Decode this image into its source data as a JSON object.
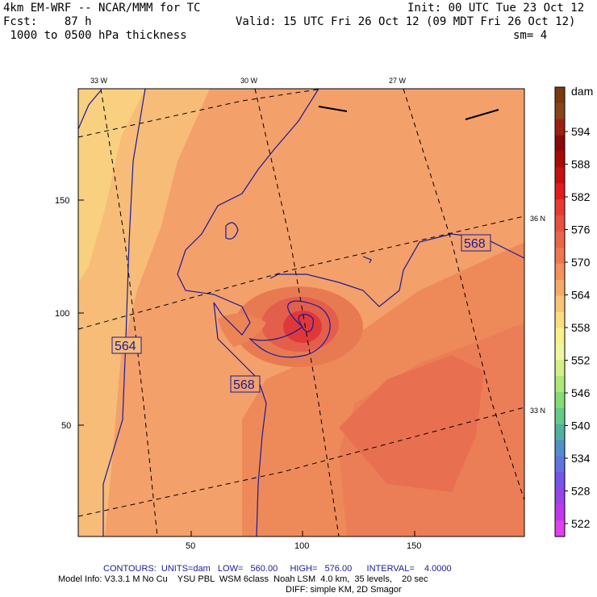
{
  "header": {
    "model": "4km EM-WRF -- NCAR/MMM for TC",
    "init": "Init: 00 UTC Tue 23 Oct 12",
    "fcst": "Fcst:    87 h",
    "valid": "Valid: 15 UTC Fri 26 Oct 12 (09 MDT Fri 26 Oct 12)",
    "field": " 1000 to 0500 hPa thickness",
    "smoothing": "sm= 4"
  },
  "map": {
    "lon_labels": [
      "33 W",
      "30 W",
      "27 W"
    ],
    "lat_labels": [
      "36 N",
      "33 N"
    ],
    "y_ticks": [
      "150",
      "100",
      "50"
    ],
    "x_ticks": [
      "50",
      "100",
      "150"
    ],
    "contour_labels": [
      "564",
      "568",
      "568"
    ]
  },
  "colorbar": {
    "unit": "dam",
    "labels": [
      "594",
      "588",
      "582",
      "576",
      "570",
      "564",
      "558",
      "552",
      "546",
      "540",
      "534",
      "528",
      "522"
    ],
    "colors": [
      "#f4c090",
      "#f8a860",
      "#f08c50",
      "#e87050",
      "#e05848",
      "#e03838",
      "#e82020",
      "#c81010",
      "#a80808",
      "#880404",
      "#7a2010",
      "#8a3a18",
      "#9a5020",
      "#f7d070",
      "#f9f08a",
      "#f2f7a0",
      "#d8f080",
      "#b0e870",
      "#80de70",
      "#60c890",
      "#50a8a0",
      "#5088c8",
      "#6070e0",
      "#7050e8",
      "#9040e8",
      "#b030e8",
      "#e040f0"
    ]
  },
  "footer": {
    "contours": "CONTOURS:  UNITS=dam   LOW=   560.00     HIGH=   576.00      INTERVAL=    4.0000",
    "model_info": "Model Info: V3.3.1 M No Cu    YSU PBL  WSM 6class  Noah LSM  4.0 km,  35 levels,    20 sec",
    "diff": "DIFF: simple KM, 2D Smagor"
  }
}
